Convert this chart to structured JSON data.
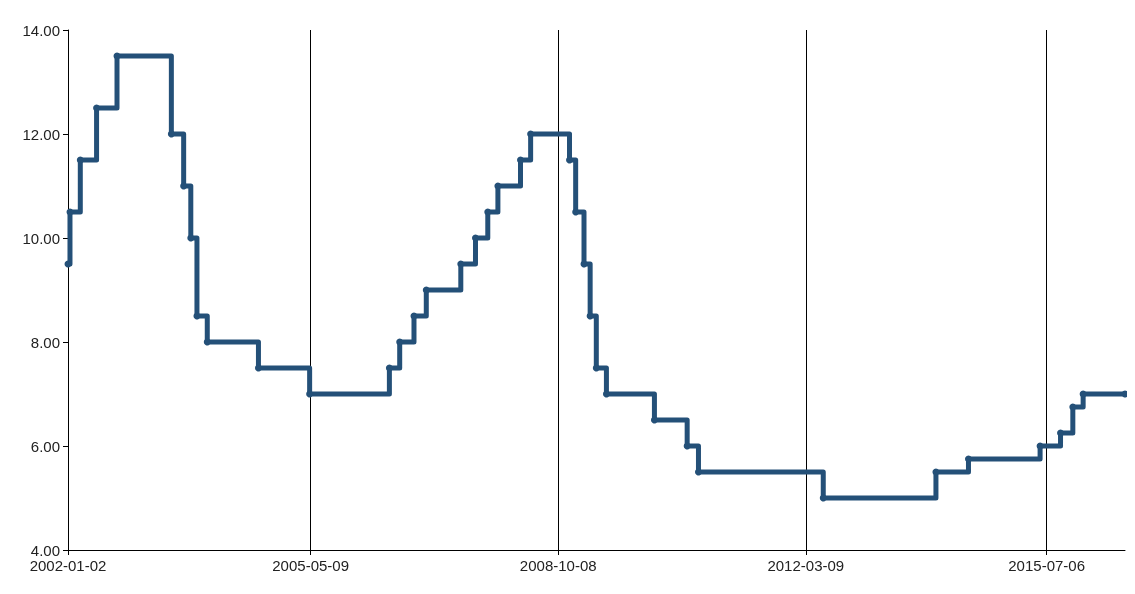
{
  "chart_data": {
    "type": "step",
    "x": [
      "2002-01-02",
      "2002-01-12",
      "2002-03-05",
      "2002-05-26",
      "2002-09-06",
      "2003-06-07",
      "2003-08-08",
      "2003-09-13",
      "2003-10-14",
      "2003-12-05",
      "2004-08-19",
      "2005-05-04",
      "2006-06-10",
      "2006-08-01",
      "2006-10-12",
      "2006-12-13",
      "2007-06-05",
      "2007-08-18",
      "2007-10-19",
      "2007-12-09",
      "2008-04-01",
      "2008-05-22",
      "2008-12-04",
      "2009-01-04",
      "2009-02-15",
      "2009-03-18",
      "2009-04-18",
      "2009-06-08",
      "2010-02-05",
      "2010-07-20",
      "2010-09-15",
      "2012-06-05",
      "2013-12-25",
      "2014-06-07",
      "2015-06-03",
      "2015-09-14",
      "2015-11-15",
      "2016-01-06",
      "2016-08-04"
    ],
    "series": [
      {
        "color": "#245078",
        "values": [
          9.5,
          10.5,
          11.5,
          12.5,
          13.5,
          12,
          11,
          10,
          8.5,
          8,
          7.5,
          7,
          7.5,
          8,
          8.5,
          9,
          9.5,
          10,
          10.5,
          11,
          11.5,
          12,
          11.5,
          10.5,
          9.5,
          8.5,
          7.5,
          7,
          6.5,
          6,
          5.5,
          5,
          5.5,
          5.75,
          6,
          6.25,
          6.75,
          7,
          7
        ]
      }
    ],
    "xlim": [
      "2002-01-02",
      "2016-08-04"
    ],
    "xticks": [
      "2002-01-02",
      "2005-05-09",
      "2008-10-08",
      "2012-03-09",
      "2015-07-06"
    ],
    "ylim": [
      4,
      14
    ],
    "yticks": [
      {
        "value": 4,
        "label": "4.00"
      },
      {
        "value": 6,
        "label": "6.00"
      },
      {
        "value": 8,
        "label": "8.00"
      },
      {
        "value": 10,
        "label": "10.00"
      },
      {
        "value": 12,
        "label": "12.00"
      },
      {
        "value": 14,
        "label": "14.00"
      }
    ],
    "grid": "x",
    "marker": "circle"
  }
}
